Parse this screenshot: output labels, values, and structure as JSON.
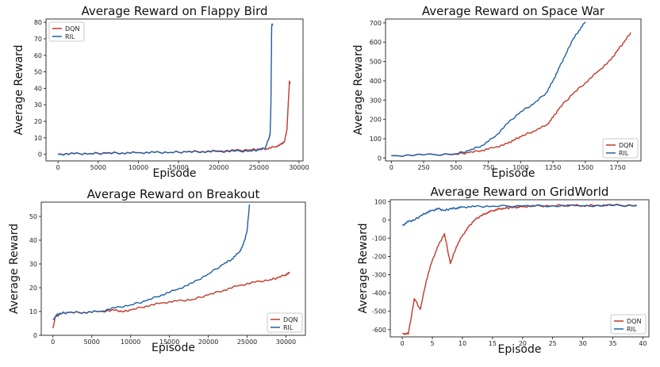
{
  "chart_data": [
    {
      "type": "line",
      "title": "Average Reward on Flappy Bird",
      "xlabel": "Episode",
      "ylabel": "Average Reward",
      "xlim": [
        -1500,
        30500
      ],
      "ylim": [
        -4,
        82
      ],
      "xticks": [
        0,
        5000,
        10000,
        15000,
        20000,
        25000,
        30000
      ],
      "yticks": [
        0,
        10,
        20,
        30,
        40,
        50,
        60,
        70,
        80
      ],
      "legend_position": "top-left",
      "series": [
        {
          "name": "DQN",
          "color": "#c0392b",
          "x": [
            0,
            2000,
            4000,
            6000,
            8000,
            10000,
            12000,
            14000,
            16000,
            18000,
            20000,
            22000,
            24000,
            25000,
            26000,
            27000,
            27800,
            28200,
            28500,
            28600,
            28700,
            28800,
            28900
          ],
          "y": [
            0.2,
            0.4,
            0.5,
            0.8,
            0.9,
            1.0,
            1.1,
            1.2,
            1.5,
            1.8,
            2.0,
            2.3,
            2.8,
            3.0,
            3.5,
            4.5,
            6,
            8,
            15,
            25,
            34,
            44,
            43
          ]
        },
        {
          "name": "RIL",
          "color": "#1f5fa6",
          "x": [
            0,
            2000,
            4000,
            6000,
            8000,
            10000,
            12000,
            14000,
            16000,
            18000,
            20000,
            22000,
            24000,
            25000,
            25800,
            26200,
            26400,
            26500,
            26600,
            26700
          ],
          "y": [
            0,
            0.3,
            0.4,
            0.6,
            0.8,
            1.0,
            1.1,
            1.2,
            1.4,
            1.6,
            1.7,
            1.8,
            2.1,
            2.6,
            4,
            9,
            12,
            30,
            78,
            79
          ]
        }
      ]
    },
    {
      "type": "line",
      "title": "Average Reward on Space War",
      "xlabel": "Episode",
      "ylabel": "Average Reward",
      "xlim": [
        -45,
        1930
      ],
      "ylim": [
        -15,
        720
      ],
      "xticks": [
        0,
        250,
        500,
        750,
        1000,
        1250,
        1500,
        1750
      ],
      "yticks": [
        0,
        100,
        200,
        300,
        400,
        500,
        600,
        700
      ],
      "legend_position": "bottom-right",
      "series": [
        {
          "name": "DQN",
          "color": "#c0392b",
          "x": [
            0,
            250,
            500,
            600,
            700,
            800,
            900,
            950,
            1000,
            1100,
            1200,
            1250,
            1300,
            1400,
            1500,
            1600,
            1700,
            1750,
            1800,
            1850
          ],
          "y": [
            12,
            16,
            20,
            28,
            40,
            55,
            75,
            95,
            110,
            140,
            170,
            210,
            260,
            330,
            390,
            450,
            510,
            560,
            600,
            650
          ]
        },
        {
          "name": "RIL",
          "color": "#1f5fa6",
          "x": [
            0,
            250,
            500,
            600,
            700,
            800,
            900,
            1000,
            1100,
            1200,
            1250,
            1300,
            1350,
            1400,
            1450,
            1500
          ],
          "y": [
            12,
            16,
            22,
            38,
            65,
            110,
            180,
            240,
            280,
            340,
            400,
            470,
            540,
            610,
            660,
            705
          ]
        }
      ]
    },
    {
      "type": "line",
      "title": "Average Reward on Breakout",
      "xlabel": "Episode",
      "ylabel": "Average Reward",
      "xlim": [
        -1500,
        32500
      ],
      "ylim": [
        0,
        56
      ],
      "xticks": [
        0,
        5000,
        10000,
        15000,
        20000,
        25000,
        30000
      ],
      "yticks": [
        0,
        10,
        20,
        30,
        40,
        50
      ],
      "legend_position": "bottom-right",
      "series": [
        {
          "name": "DQN",
          "color": "#c0392b",
          "x": [
            0,
            300,
            1000,
            2000,
            4000,
            6000,
            8000,
            9000,
            10000,
            12000,
            14000,
            16000,
            18000,
            20000,
            22000,
            24000,
            26000,
            28000,
            29000,
            30000,
            30500
          ],
          "y": [
            3,
            7.5,
            9.2,
            9.5,
            9.6,
            10,
            10.5,
            10,
            10.6,
            12.3,
            13.6,
            14.4,
            15.1,
            17,
            19,
            21,
            22.3,
            23.4,
            24.2,
            25.6,
            26.3
          ]
        },
        {
          "name": "RIL",
          "color": "#1f5fa6",
          "x": [
            0,
            500,
            1000,
            2000,
            4000,
            6000,
            8000,
            10000,
            12000,
            14000,
            16000,
            18000,
            20000,
            22000,
            23000,
            24000,
            24500,
            25000,
            25300
          ],
          "y": [
            6.5,
            8.5,
            9.3,
            9.6,
            9.7,
            10,
            11.5,
            12.8,
            14.5,
            17,
            19.3,
            22,
            25.8,
            30,
            32,
            35,
            38,
            44,
            55
          ]
        }
      ]
    },
    {
      "type": "line",
      "title": "Average Reward on GridWorld",
      "xlabel": "Episode",
      "ylabel": "Average Reward",
      "xlim": [
        -2,
        41
      ],
      "ylim": [
        -640,
        110
      ],
      "xticks": [
        0,
        5,
        10,
        15,
        20,
        25,
        30,
        35,
        40
      ],
      "yticks": [
        -600,
        -500,
        -400,
        -300,
        -200,
        -100,
        0,
        100
      ],
      "legend_position": "bottom-right",
      "series": [
        {
          "name": "DQN",
          "color": "#c0392b",
          "x": [
            0,
            1,
            2,
            3,
            4,
            5,
            6,
            7,
            8,
            9,
            10,
            11,
            12,
            13,
            14,
            15,
            16,
            17,
            18,
            19,
            20,
            22,
            25,
            28,
            30,
            32,
            35,
            39
          ],
          "y": [
            -620,
            -625,
            -430,
            -490,
            -330,
            -220,
            -140,
            -75,
            -240,
            -145,
            -85,
            -40,
            0,
            20,
            38,
            50,
            58,
            64,
            67,
            70,
            72,
            75,
            78,
            80,
            78,
            79,
            80,
            80
          ]
        },
        {
          "name": "RIL",
          "color": "#1f5fa6",
          "x": [
            0,
            1,
            2,
            3,
            4,
            5,
            6,
            7,
            8,
            9,
            10,
            12,
            15,
            20,
            25,
            30,
            35,
            39
          ],
          "y": [
            -30,
            -10,
            0,
            20,
            40,
            52,
            60,
            52,
            60,
            65,
            70,
            72,
            75,
            76,
            77,
            77,
            78,
            78
          ]
        }
      ]
    }
  ]
}
